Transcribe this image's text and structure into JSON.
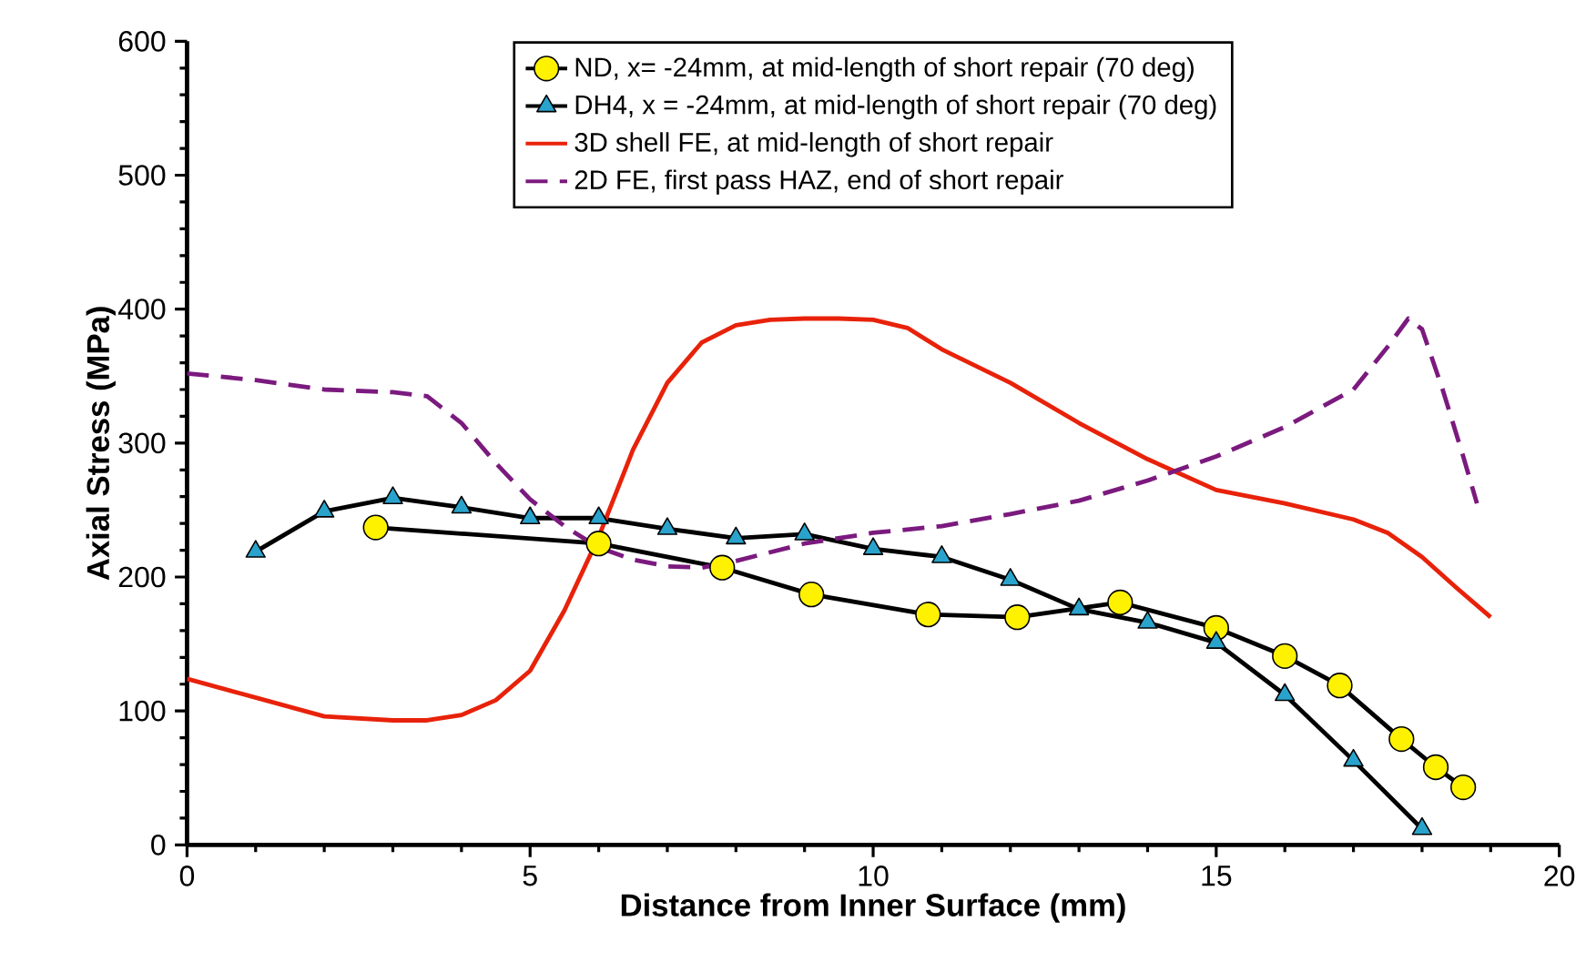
{
  "chart_data": {
    "type": "line",
    "xlabel": "Distance from Inner Surface (mm)",
    "ylabel": "Axial Stress (MPa)",
    "xlim": [
      0,
      20
    ],
    "xticks": [
      0,
      5,
      10,
      15,
      20
    ],
    "ylim": [
      0,
      600
    ],
    "yticks": [
      0,
      100,
      200,
      300,
      400,
      500,
      600
    ],
    "grid": false,
    "legend": "top",
    "series": [
      {
        "name": "ND, x= -24mm, at mid-length of short repair (70 deg)",
        "color": "#000000",
        "marker": "circle",
        "line_style": "solid",
        "x": [
          2.75,
          6,
          7.8,
          9.1,
          10.8,
          12.1,
          13.6,
          15,
          16,
          16.8,
          17.7,
          18.2,
          18.6
        ],
        "values": [
          237,
          225,
          207,
          187,
          172,
          170,
          181,
          162,
          141,
          119,
          79,
          58,
          43
        ]
      },
      {
        "name": "DH4, x = -24mm, at mid-length of short repair (70 deg)",
        "color": "#000000",
        "marker": "triangle",
        "line_style": "solid",
        "x": [
          1,
          2,
          3,
          4,
          5,
          6,
          7,
          8,
          9,
          10,
          11,
          12,
          13,
          14,
          15,
          16,
          17,
          18
        ],
        "values": [
          219,
          249,
          259,
          252,
          244,
          244,
          236,
          229,
          232,
          221,
          215,
          198,
          176,
          166,
          151,
          112,
          63,
          12
        ]
      },
      {
        "name": "3D shell FE, at mid-length of short repair",
        "color": "#e8220a",
        "marker": "none",
        "line_style": "solid",
        "x": [
          0,
          1,
          2,
          3,
          3.5,
          4,
          4.5,
          5,
          5.5,
          6,
          6.5,
          7,
          7.5,
          8,
          8.5,
          9,
          9.5,
          10,
          10.5,
          11,
          12,
          13,
          14,
          15,
          16,
          17,
          17.5,
          18,
          18.5,
          19
        ],
        "values": [
          124,
          110,
          96,
          93,
          93,
          97,
          108,
          130,
          175,
          230,
          295,
          345,
          375,
          388,
          392,
          393,
          393,
          392,
          386,
          370,
          345,
          315,
          288,
          265,
          255,
          243,
          233,
          215,
          192,
          170
        ]
      },
      {
        "name": "2D FE, first pass HAZ, end of short repair",
        "color": "#7b1a7e",
        "marker": "none",
        "line_style": "dashed",
        "x": [
          0,
          1,
          2,
          3,
          3.5,
          4,
          4.5,
          5,
          5.5,
          6,
          6.5,
          7,
          7.5,
          8,
          9,
          10,
          11,
          12,
          13,
          14,
          15,
          16,
          17,
          17.5,
          17.8,
          18,
          18.3,
          18.6,
          18.8
        ],
        "values": [
          352,
          347,
          340,
          338,
          335,
          315,
          285,
          258,
          238,
          222,
          213,
          208,
          207,
          212,
          225,
          233,
          238,
          247,
          257,
          272,
          290,
          312,
          340,
          372,
          393,
          385,
          340,
          290,
          255
        ]
      }
    ]
  }
}
